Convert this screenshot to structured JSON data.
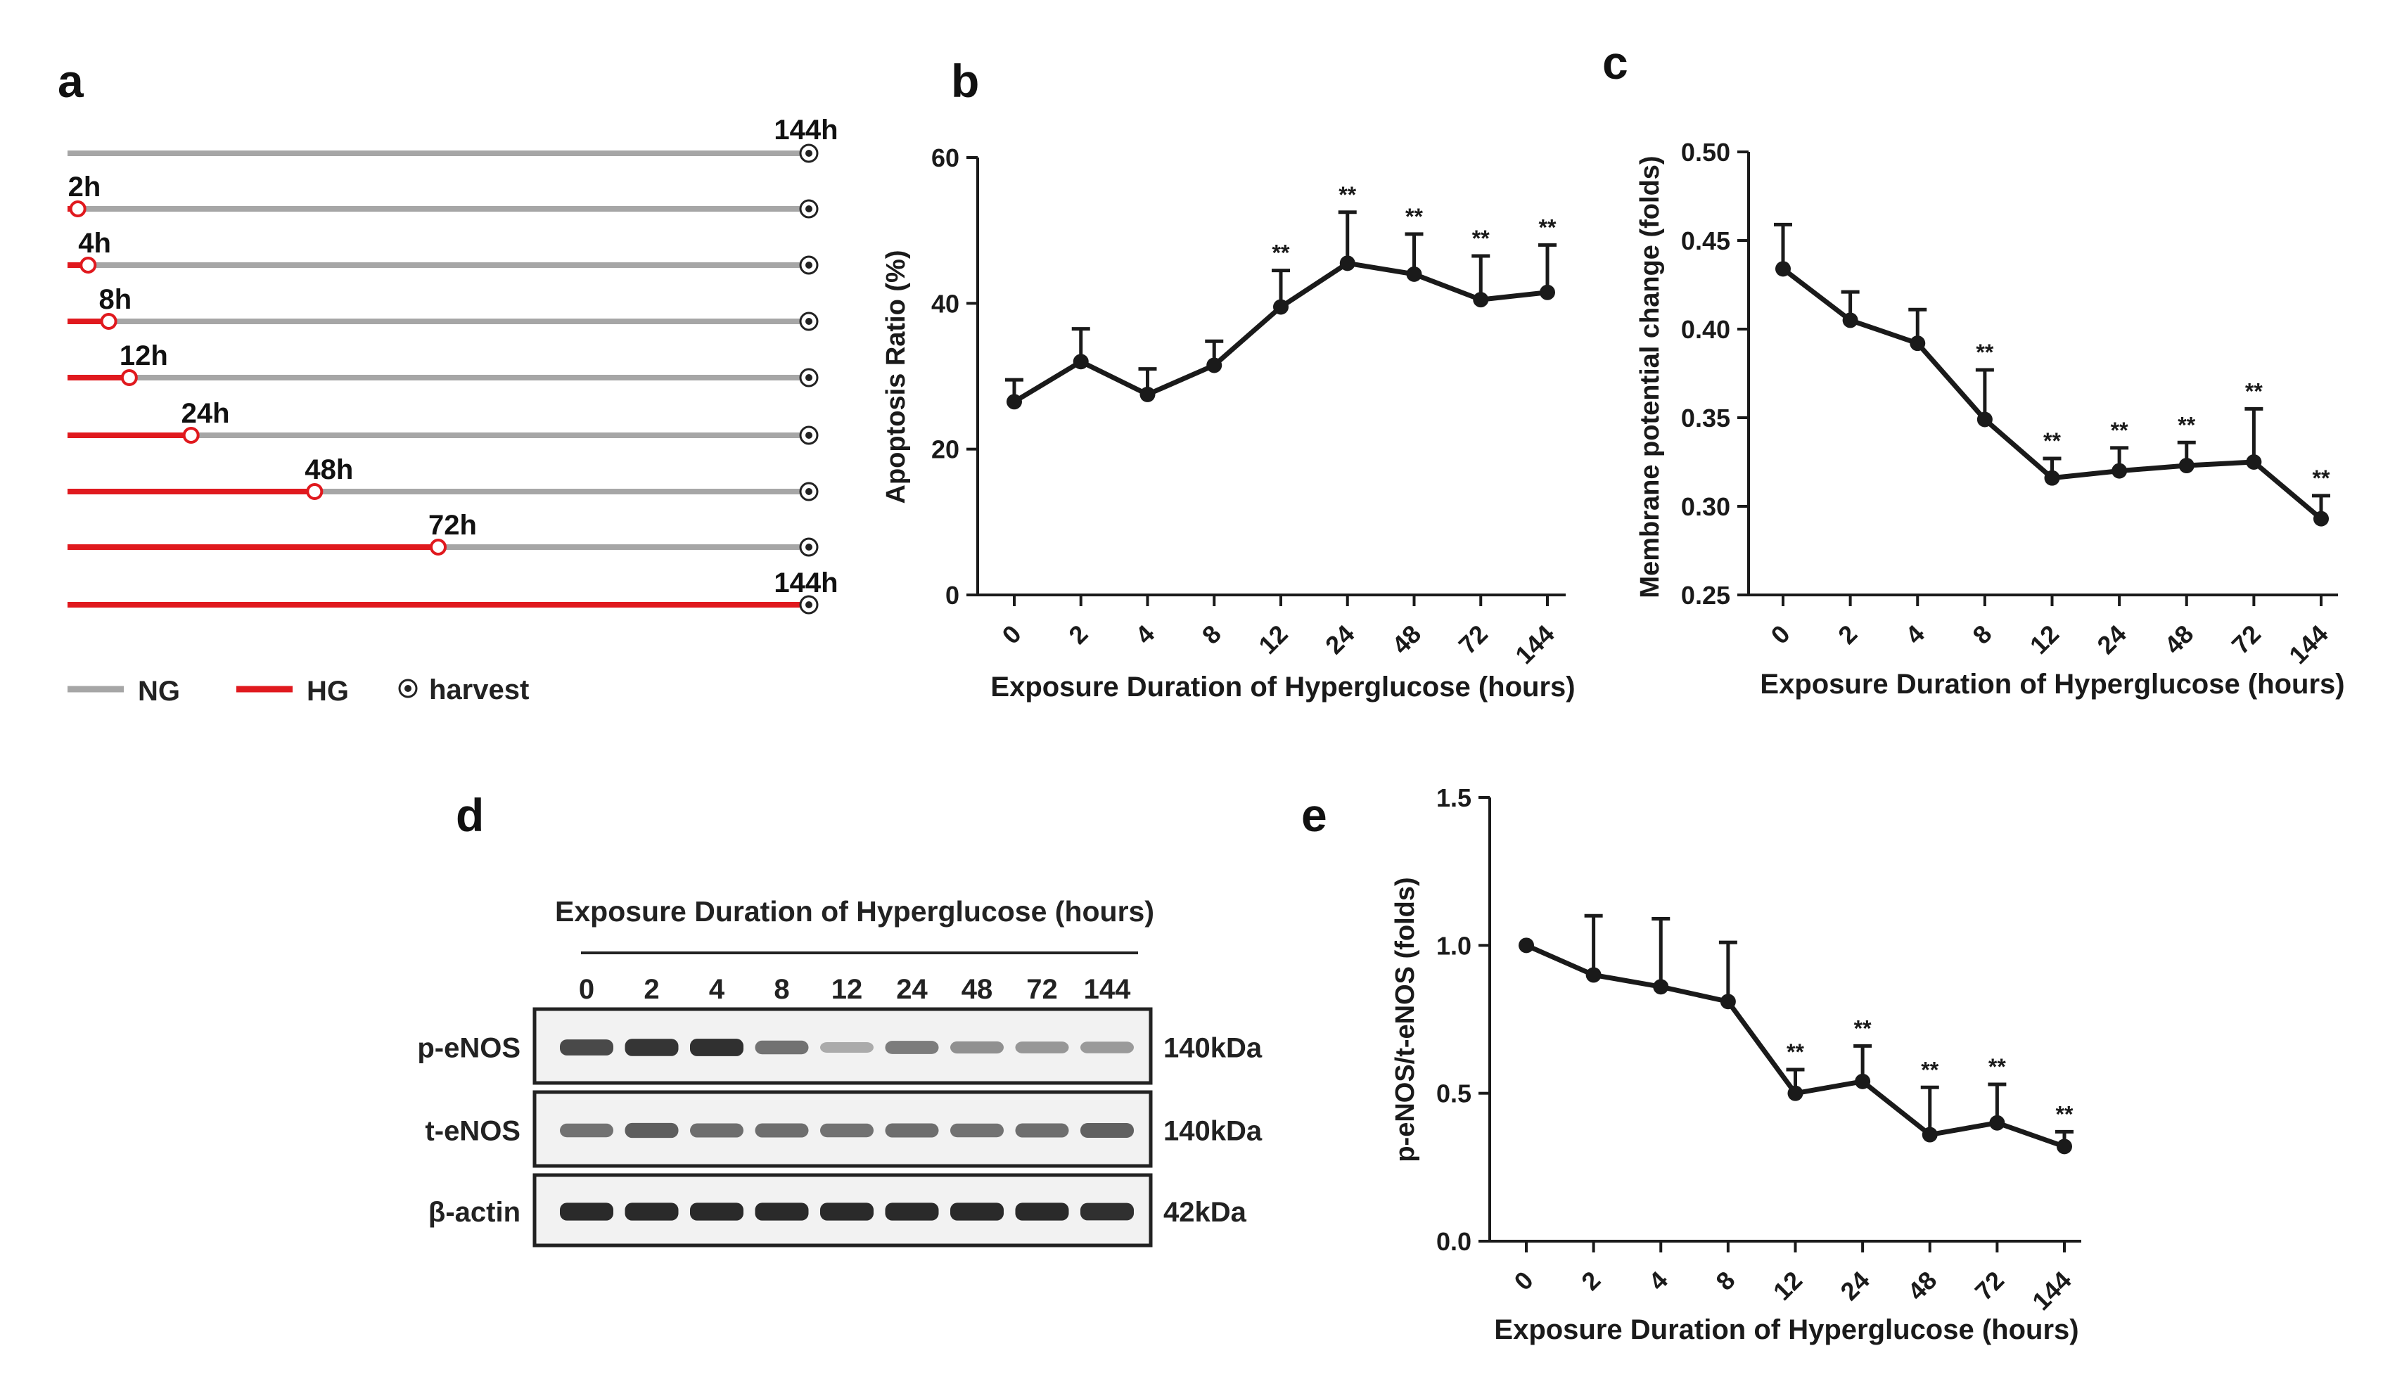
{
  "colors": {
    "ng": "#a6a6a6",
    "hg": "#e0191e",
    "ink": "#1a1a1a"
  },
  "panel_labels": {
    "a": "a",
    "b": "b",
    "c": "c",
    "d": "d",
    "e": "e"
  },
  "timeline": {
    "total_hours": 144,
    "end_label": "144h",
    "rows": [
      {
        "label": "",
        "hg_hours": 0
      },
      {
        "label": "2h",
        "hg_hours": 2
      },
      {
        "label": "4h",
        "hg_hours": 4
      },
      {
        "label": "8h",
        "hg_hours": 8
      },
      {
        "label": "12h",
        "hg_hours": 12
      },
      {
        "label": "24h",
        "hg_hours": 24
      },
      {
        "label": "48h",
        "hg_hours": 48
      },
      {
        "label": "72h",
        "hg_hours": 72
      },
      {
        "label": "144h",
        "hg_hours": 144
      }
    ],
    "legend": {
      "ng": "NG",
      "hg": "HG",
      "harvest": "harvest"
    }
  },
  "western": {
    "title": "Exposure Duration of Hyperglucose (hours)",
    "lanes": [
      "0",
      "2",
      "4",
      "8",
      "12",
      "24",
      "48",
      "72",
      "144"
    ],
    "blots": [
      {
        "label": "p-eNOS",
        "size": "140kDa",
        "intensity": [
          0.8,
          0.9,
          0.92,
          0.6,
          0.32,
          0.55,
          0.45,
          0.42,
          0.4
        ]
      },
      {
        "label": "t-eNOS",
        "size": "140kDa",
        "intensity": [
          0.6,
          0.7,
          0.62,
          0.62,
          0.6,
          0.62,
          0.6,
          0.62,
          0.68
        ]
      },
      {
        "label": "β-actin",
        "size": "42kDa",
        "intensity": [
          0.95,
          0.95,
          0.95,
          0.95,
          0.95,
          0.95,
          0.95,
          0.95,
          0.92
        ]
      }
    ]
  },
  "chart_data": [
    {
      "panel": "b",
      "type": "line",
      "categories": [
        "0",
        "2",
        "4",
        "8",
        "12",
        "24",
        "48",
        "72",
        "144"
      ],
      "values": [
        26.5,
        32,
        27.5,
        31.5,
        39.5,
        45.5,
        44,
        40.5,
        41.5
      ],
      "errors": [
        3,
        4.5,
        3.5,
        3.3,
        5,
        7,
        5.5,
        6,
        6.5
      ],
      "significance": [
        "",
        "",
        "",
        "",
        "**",
        "**",
        "**",
        "**",
        "**"
      ],
      "ylim": [
        0,
        60
      ],
      "yticks": [
        0,
        20,
        40,
        60
      ],
      "ytick_labels": [
        "0",
        "20",
        "40",
        "60"
      ],
      "xlabel": "Exposure Duration of Hyperglucose (hours)",
      "ylabel": "Apoptosis Ratio (%)"
    },
    {
      "panel": "c",
      "type": "line",
      "categories": [
        "0",
        "2",
        "4",
        "8",
        "12",
        "24",
        "48",
        "72",
        "144"
      ],
      "values": [
        0.434,
        0.405,
        0.392,
        0.349,
        0.316,
        0.32,
        0.323,
        0.325,
        0.293
      ],
      "errors": [
        0.025,
        0.016,
        0.019,
        0.028,
        0.011,
        0.013,
        0.013,
        0.03,
        0.013
      ],
      "significance": [
        "",
        "",
        "",
        "**",
        "**",
        "**",
        "**",
        "**",
        "**"
      ],
      "ylim": [
        0.25,
        0.5
      ],
      "yticks": [
        0.25,
        0.3,
        0.35,
        0.4,
        0.45,
        0.5
      ],
      "ytick_labels": [
        "0.25",
        "0.30",
        "0.35",
        "0.40",
        "0.45",
        "0.50"
      ],
      "xlabel": "Exposure Duration of Hyperglucose (hours)",
      "ylabel": "Membrane potential change (folds)"
    },
    {
      "panel": "e",
      "type": "line",
      "categories": [
        "0",
        "2",
        "4",
        "8",
        "12",
        "24",
        "48",
        "72",
        "144"
      ],
      "values": [
        1.0,
        0.9,
        0.86,
        0.81,
        0.5,
        0.54,
        0.36,
        0.4,
        0.32
      ],
      "errors": [
        0,
        0.2,
        0.23,
        0.2,
        0.08,
        0.12,
        0.16,
        0.13,
        0.05
      ],
      "significance": [
        "",
        "",
        "",
        "",
        "**",
        "**",
        "**",
        "**",
        "**"
      ],
      "ylim": [
        0,
        1.5
      ],
      "yticks": [
        0,
        0.5,
        1.0,
        1.5
      ],
      "ytick_labels": [
        "0.0",
        "0.5",
        "1.0",
        "1.5"
      ],
      "xlabel": "Exposure Duration of Hyperglucose (hours)",
      "ylabel": "p-eNOS/t-eNOS (folds)"
    }
  ]
}
